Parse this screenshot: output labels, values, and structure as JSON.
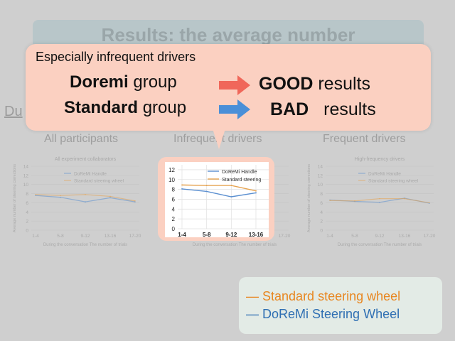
{
  "slide": {
    "title": "Results: the average number",
    "partial_text": "Du"
  },
  "panels": {
    "all": "All participants",
    "infrequent": "Infrequent drivers",
    "frequent": "Frequent drivers"
  },
  "callout": {
    "heading": "Especially infrequent drivers",
    "row1": {
      "bold": "Doremi",
      "rest": "group",
      "result_bold": "GOOD",
      "result_rest": "results",
      "arrow_color": "#f0675a"
    },
    "row2": {
      "bold": "Standard",
      "rest": "group",
      "result_bold": "BAD",
      "result_rest": "results",
      "arrow_color": "#4a8fd8"
    }
  },
  "legend": {
    "standard": "Standard steering wheel",
    "doremi": "DoReMi Steering Wheel",
    "standard_color": "#e8861f",
    "doremi_color": "#2f6fb3"
  },
  "chart_data": [
    {
      "type": "line",
      "title": "All experiment collaborators",
      "xlabel": "During the conversation The number of trials",
      "ylabel": "Average number of steering corrections",
      "categories": [
        "1-4",
        "5-8",
        "9-12",
        "13-16",
        "17-20"
      ],
      "ylim": [
        0,
        14
      ],
      "legend_position": "top-center",
      "series": [
        {
          "name": "DoReMi Handle",
          "values": [
            7.6,
            7.2,
            6.2,
            7.1,
            6.2
          ]
        },
        {
          "name": "Standard steering wheel",
          "values": [
            7.8,
            7.6,
            7.8,
            7.4,
            6.4
          ]
        }
      ]
    },
    {
      "type": "line",
      "xlabel": "",
      "ylabel": "",
      "categories": [
        "1-4",
        "5-8",
        "9-12",
        "13-16"
      ],
      "ylim": [
        0,
        13
      ],
      "yticks": [
        0,
        2,
        4,
        6,
        8,
        10,
        12
      ],
      "legend_position": "top-right",
      "series": [
        {
          "name": "DoReMi Handle",
          "values": [
            8.1,
            7.6,
            6.5,
            7.3
          ]
        },
        {
          "name": "Standard steering",
          "values": [
            8.9,
            8.8,
            8.8,
            7.7
          ]
        }
      ]
    },
    {
      "type": "line",
      "title": "High-frequency drivers",
      "xlabel": "During the conversation The number of trials",
      "ylabel": "Average number of steering corrections",
      "categories": [
        "1-4",
        "5-8",
        "9-12",
        "13-16",
        "17-20"
      ],
      "ylim": [
        0,
        14
      ],
      "legend_position": "top-center",
      "series": [
        {
          "name": "DoReMi Handle",
          "values": [
            6.6,
            6.3,
            6.1,
            7.0,
            5.9
          ]
        },
        {
          "name": "Standard steering wheel",
          "values": [
            6.5,
            6.4,
            6.9,
            6.9,
            6.0
          ]
        }
      ]
    }
  ]
}
